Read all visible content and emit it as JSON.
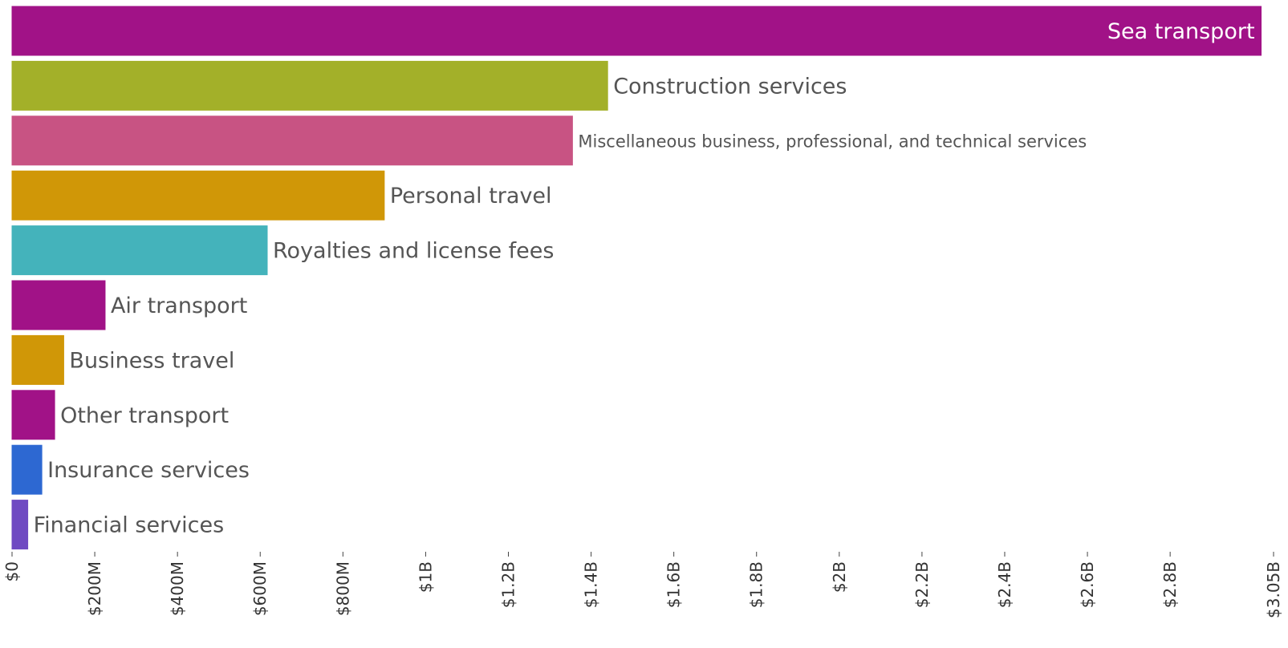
{
  "chart_data": {
    "type": "bar",
    "orientation": "horizontal",
    "title": "",
    "xlabel": "",
    "ylabel": "",
    "xlim": [
      0,
      3050000000
    ],
    "grid": false,
    "legend": "none",
    "categories": [
      "Sea transport",
      "Construction services",
      "Miscellaneous business, professional, and technical services",
      "Personal travel",
      "Royalties and license fees",
      "Air transport",
      "Business travel",
      "Other transport",
      "Insurance services",
      "Financial services"
    ],
    "values": [
      3020000000,
      1440000000,
      1355000000,
      900000000,
      617000000,
      225000000,
      125000000,
      103000000,
      72000000,
      38000000
    ],
    "colors": [
      "#a11287",
      "#a3b029",
      "#c85383",
      "#d09707",
      "#44b3bb",
      "#a11287",
      "#d09707",
      "#a11287",
      "#2d68d2",
      "#6f4ac2"
    ],
    "label_inside": [
      true,
      false,
      false,
      false,
      false,
      false,
      false,
      false,
      false,
      false
    ],
    "x_ticks": [
      0,
      200000000,
      400000000,
      600000000,
      800000000,
      1000000000,
      1200000000,
      1400000000,
      1600000000,
      1800000000,
      2000000000,
      2200000000,
      2400000000,
      2600000000,
      2800000000,
      3050000000
    ],
    "x_tick_labels": [
      "$0",
      "$200M",
      "$400M",
      "$600M",
      "$800M",
      "$1B",
      "$1.2B",
      "$1.4B",
      "$1.6B",
      "$1.8B",
      "$2B",
      "$2.2B",
      "$2.4B",
      "$2.6B",
      "$2.8B",
      "$3.05B"
    ]
  }
}
